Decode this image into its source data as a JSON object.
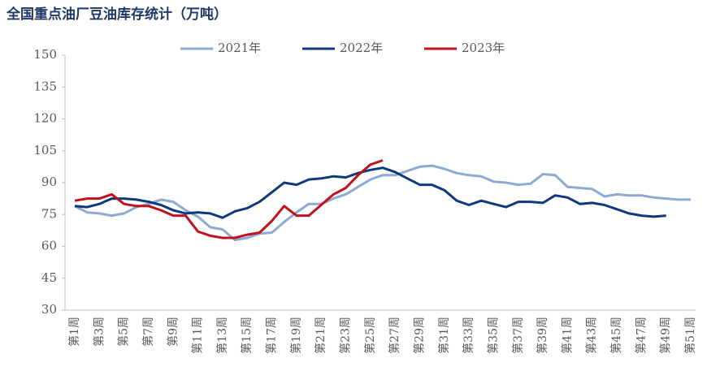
{
  "chart_data": {
    "type": "line",
    "title": "全国重点油厂豆油库存统计（万吨）",
    "categories": [
      "第1周",
      null,
      "第3周",
      null,
      "第5周",
      null,
      "第7周",
      null,
      "第9周",
      null,
      "第11周",
      null,
      "第13周",
      null,
      "第15周",
      null,
      "第17周",
      null,
      "第19周",
      null,
      "第21周",
      null,
      "第23周",
      null,
      "第25周",
      null,
      "第27周",
      null,
      "第29周",
      null,
      "第31周",
      null,
      "第33周",
      null,
      "第35周",
      null,
      "第37周",
      null,
      "第39周",
      null,
      "第41周",
      null,
      "第43周",
      null,
      "第45周",
      null,
      "第47周",
      null,
      "第49周",
      null,
      "第51周"
    ],
    "series": [
      {
        "name": "2021年",
        "color": "#8eaad2",
        "values": [
          79,
          76,
          75.5,
          74.5,
          75.5,
          78.5,
          80,
          82,
          81,
          77,
          74,
          69,
          68,
          63,
          64,
          66,
          66.5,
          71.5,
          76,
          80,
          80,
          82.5,
          84.5,
          88,
          91.5,
          93.5,
          93.5,
          95.5,
          97.5,
          98,
          96.5,
          94.5,
          93.5,
          93,
          90.5,
          90,
          89,
          89.5,
          94,
          93.5,
          88,
          87.5,
          87,
          83.5,
          84.5,
          84,
          84,
          83,
          82.5,
          82,
          82
        ]
      },
      {
        "name": "2022年",
        "color": "#0e3a7c",
        "values": [
          79,
          78.5,
          80,
          82.5,
          82.5,
          82,
          81,
          79.5,
          77,
          75.5,
          76,
          75.5,
          73.5,
          76.5,
          78,
          81,
          85.5,
          90,
          89,
          91.5,
          92,
          93,
          92.5,
          94.5,
          96,
          97,
          95,
          92,
          89,
          89,
          86.5,
          81.5,
          79.5,
          81.5,
          80,
          78.5,
          81,
          81,
          80.5,
          84,
          83,
          80,
          80.5,
          79.5,
          77.5,
          75.5,
          74.5,
          74,
          74.5,
          null,
          null
        ]
      },
      {
        "name": "2023年",
        "color": "#c0121c",
        "values": [
          81.5,
          82.5,
          82.5,
          84.5,
          80,
          79,
          79,
          77,
          74.5,
          74.5,
          67,
          65,
          64,
          64,
          65.5,
          66.5,
          72,
          79,
          74.5,
          74.5,
          79.5,
          84.5,
          87.5,
          93.5,
          98.5,
          100.5,
          null,
          null,
          null,
          null,
          null,
          null,
          null,
          null,
          null,
          null,
          null,
          null,
          null,
          null,
          null,
          null,
          null,
          null,
          null,
          null,
          null,
          null,
          null,
          null,
          null
        ]
      }
    ],
    "ylim": [
      30,
      150
    ],
    "yticks": [
      30,
      45,
      60,
      75,
      90,
      105,
      120,
      135,
      150
    ],
    "grid": false
  }
}
